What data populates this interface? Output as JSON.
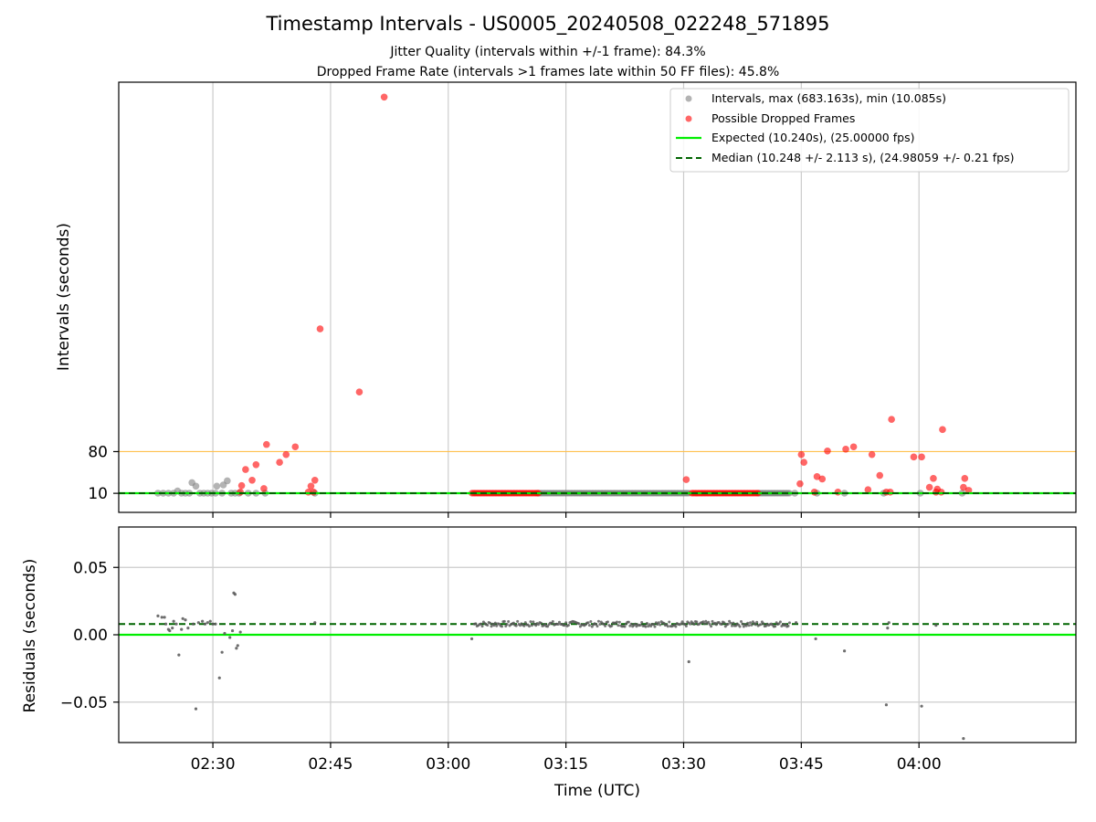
{
  "figure": {
    "title": "Timestamp Intervals - US0005_20240508_022248_571895",
    "subtitle_1": "Jitter Quality (intervals within +/-1 frame): 84.3%",
    "subtitle_2": "Dropped Frame Rate (intervals >1 frames late within 50 FF files): 45.8%",
    "xlabel": "Time (UTC)",
    "colors": {
      "intervals": "#808080",
      "dropped": "#ff0000",
      "expected": "#00ee00",
      "median": "#006400",
      "threshold": "#ffc04d",
      "residual_points": "#555555",
      "grid": "#cccccc"
    }
  },
  "chart_data": [
    {
      "type": "scatter",
      "panel": "intervals",
      "ylabel": "Intervals (seconds)",
      "x_unit": "time HH:MM (UTC)",
      "xlim": [
        "02:18",
        "04:20"
      ],
      "ylim": [
        -22,
        700
      ],
      "xticks": [
        "02:30",
        "02:45",
        "03:00",
        "03:15",
        "03:30",
        "03:45",
        "04:00"
      ],
      "yticks": [
        10,
        80
      ],
      "ytick_labels": [
        "10",
        "80"
      ],
      "grid": "x",
      "legend_position": "upper right",
      "legend": [
        "Intervals, max (683.163s), min (10.085s)",
        "Possible Dropped Frames",
        "Expected (10.240s), (25.00000 fps)",
        "Median (10.248 +/- 2.113 s), (24.98059 +/- 0.21 fps)"
      ],
      "lines": [
        {
          "name": "Expected",
          "y": 10.24
        },
        {
          "name": "Median",
          "y": 10.248
        },
        {
          "name": "Threshold",
          "y": 80
        }
      ],
      "series": [
        {
          "name": "Intervals, max (683.163s), min (10.085s)",
          "points": [
            [
              "02:23:00",
              10.2
            ],
            [
              "02:23:40",
              10.2
            ],
            [
              "02:24:20",
              10.2
            ],
            [
              "02:25:00",
              10.2
            ],
            [
              "02:25:30",
              14
            ],
            [
              "02:26:00",
              10.2
            ],
            [
              "02:26:30",
              10.2
            ],
            [
              "02:27:00",
              10.2
            ],
            [
              "02:27:20",
              28
            ],
            [
              "02:27:50",
              22
            ],
            [
              "02:28:20",
              10.2
            ],
            [
              "02:28:50",
              10.2
            ],
            [
              "02:29:20",
              10.2
            ],
            [
              "02:29:50",
              10.2
            ],
            [
              "02:30:20",
              10.2
            ],
            [
              "02:30:30",
              22
            ],
            [
              "02:31:10",
              10.2
            ],
            [
              "02:31:20",
              24
            ],
            [
              "02:31:50",
              31
            ],
            [
              "02:32:20",
              10.2
            ],
            [
              "02:32:50",
              10.2
            ],
            [
              "02:33:20",
              10.2
            ],
            [
              "02:34:30",
              10.2
            ],
            [
              "02:35:30",
              10.2
            ],
            [
              "02:36:40",
              10.2
            ],
            [
              "02:43:00",
              10.2
            ],
            [
              "03:44:10",
              10.2
            ],
            [
              "03:47:00",
              10.2
            ],
            [
              "03:50:30",
              10.2
            ],
            [
              "03:55:30",
              10.2
            ],
            [
              "04:00:10",
              10.2
            ],
            [
              "04:05:30",
              10.2
            ]
          ],
          "continuous_runs": [
            [
              "03:11:20",
              "03:30:40"
            ],
            [
              "03:39:30",
              "03:43:30"
            ]
          ]
        },
        {
          "name": "Possible Dropped Frames",
          "points": [
            [
              "02:33:30",
              12
            ],
            [
              "02:33:40",
              23
            ],
            [
              "02:34:10",
              50
            ],
            [
              "02:35:00",
              32
            ],
            [
              "02:35:30",
              58
            ],
            [
              "02:36:30",
              18
            ],
            [
              "02:36:50",
              92
            ],
            [
              "02:38:30",
              62
            ],
            [
              "02:39:20",
              75
            ],
            [
              "02:40:30",
              88
            ],
            [
              "02:42:10",
              12
            ],
            [
              "02:42:30",
              22
            ],
            [
              "02:42:50",
              12
            ],
            [
              "02:43:00",
              32
            ],
            [
              "02:43:40",
              286
            ],
            [
              "02:48:40",
              180
            ],
            [
              "02:51:50",
              675
            ],
            [
              "03:30:20",
              33
            ],
            [
              "03:45:20",
              62
            ],
            [
              "03:44:50",
              26
            ],
            [
              "03:45:00",
              75
            ],
            [
              "03:46:40",
              12
            ],
            [
              "03:47:00",
              38
            ],
            [
              "03:47:40",
              34
            ],
            [
              "03:48:20",
              81
            ],
            [
              "03:49:40",
              12
            ],
            [
              "03:50:40",
              84
            ],
            [
              "03:51:40",
              88
            ],
            [
              "03:53:30",
              16
            ],
            [
              "03:54:00",
              75
            ],
            [
              "03:55:00",
              40
            ],
            [
              "03:55:50",
              12
            ],
            [
              "03:56:20",
              12
            ],
            [
              "03:56:30",
              134
            ],
            [
              "03:59:20",
              71
            ],
            [
              "04:00:20",
              71
            ],
            [
              "04:01:20",
              20
            ],
            [
              "04:01:50",
              35
            ],
            [
              "04:02:10",
              12
            ],
            [
              "04:02:20",
              17
            ],
            [
              "04:02:50",
              12
            ],
            [
              "04:03:00",
              117
            ],
            [
              "04:05:40",
              20
            ],
            [
              "04:05:50",
              35
            ],
            [
              "04:06:20",
              15
            ]
          ],
          "continuous_runs": [
            [
              "03:03:00",
              "03:11:30"
            ],
            [
              "03:31:00",
              "03:39:30"
            ]
          ]
        }
      ]
    },
    {
      "type": "scatter",
      "panel": "residuals",
      "ylabel": "Residuals (seconds)",
      "xlabel": "Time (UTC)",
      "xlim": [
        "02:18",
        "04:20"
      ],
      "ylim": [
        -0.08,
        0.08
      ],
      "xticks": [
        "02:30",
        "02:45",
        "03:00",
        "03:15",
        "03:30",
        "03:45",
        "04:00"
      ],
      "yticks": [
        -0.05,
        0.0,
        0.05
      ],
      "ytick_labels": [
        "−0.05",
        "0.00",
        "0.05"
      ],
      "grid": "both",
      "lines": [
        {
          "name": "Expected",
          "y": 0.0
        },
        {
          "name": "Median",
          "y": 0.008
        }
      ],
      "series": [
        {
          "name": "Residuals",
          "points": [
            [
              "02:23:00",
              0.014
            ],
            [
              "02:23:30",
              0.013
            ],
            [
              "02:23:50",
              0.013
            ],
            [
              "02:24:00",
              0.008
            ],
            [
              "02:24:20",
              0.004
            ],
            [
              "02:24:30",
              0.003
            ],
            [
              "02:24:50",
              0.005
            ],
            [
              "02:25:00",
              0.01
            ],
            [
              "02:25:20",
              0.008
            ],
            [
              "02:25:40",
              -0.015
            ],
            [
              "02:26:00",
              0.004
            ],
            [
              "02:26:10",
              0.012
            ],
            [
              "02:26:30",
              0.011
            ],
            [
              "02:26:50",
              0.005
            ],
            [
              "02:27:30",
              0.008
            ],
            [
              "02:27:50",
              -0.055
            ],
            [
              "02:28:10",
              0.009
            ],
            [
              "02:28:40",
              0.01
            ],
            [
              "02:29:00",
              0.008
            ],
            [
              "02:29:20",
              0.009
            ],
            [
              "02:29:40",
              0.01
            ],
            [
              "02:30:00",
              0.008
            ],
            [
              "02:30:20",
              0.008
            ],
            [
              "02:30:50",
              -0.032
            ],
            [
              "02:31:10",
              -0.013
            ],
            [
              "02:31:30",
              0.001
            ],
            [
              "02:32:10",
              -0.002
            ],
            [
              "02:32:30",
              0.003
            ],
            [
              "02:32:40",
              0.031
            ],
            [
              "02:32:50",
              0.03
            ],
            [
              "02:33:00",
              -0.01
            ],
            [
              "02:33:10",
              -0.008
            ],
            [
              "02:33:30",
              0.002
            ],
            [
              "02:43:00",
              0.009
            ],
            [
              "03:03:00",
              -0.003
            ],
            [
              "03:30:40",
              -0.02
            ],
            [
              "03:44:20",
              0.009
            ],
            [
              "03:46:50",
              -0.003
            ],
            [
              "03:50:30",
              -0.012
            ],
            [
              "03:55:50",
              -0.052
            ],
            [
              "03:56:00",
              0.005
            ],
            [
              "03:56:10",
              0.009
            ],
            [
              "04:00:20",
              -0.053
            ],
            [
              "04:02:10",
              0.007
            ],
            [
              "04:05:40",
              -0.077
            ]
          ],
          "dense_runs": [
            {
              "start": "03:03:20",
              "end": "03:43:30",
              "center": 0.008,
              "spread": 0.002
            }
          ]
        }
      ]
    }
  ]
}
